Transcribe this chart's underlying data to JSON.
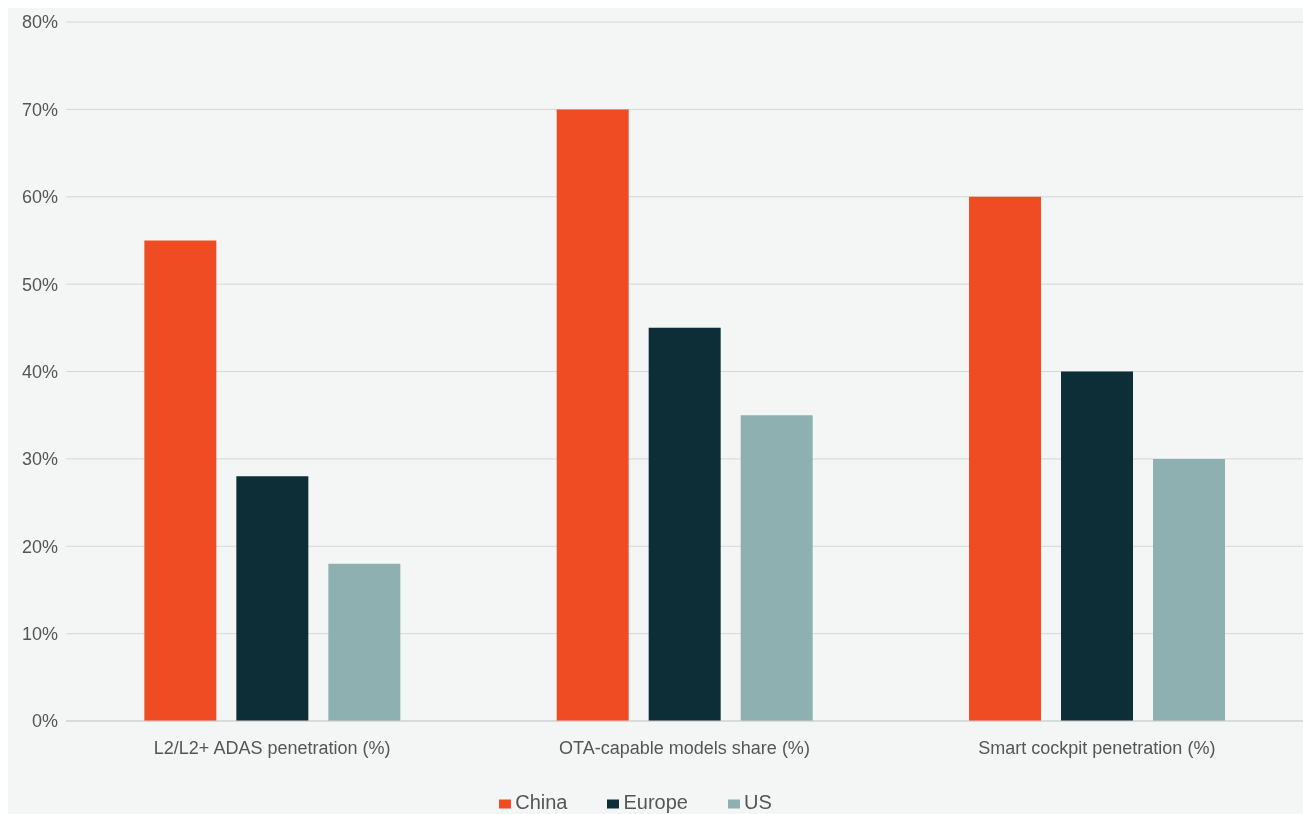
{
  "chart_data": {
    "type": "bar",
    "categories": [
      "L2/L2+ ADAS penetration (%)",
      "OTA-capable models share (%)",
      "Smart cockpit penetration (%)"
    ],
    "series": [
      {
        "name": "China",
        "color": "#f04c23",
        "values": [
          55,
          70,
          60
        ]
      },
      {
        "name": "Europe",
        "color": "#0d2e36",
        "values": [
          28,
          45,
          40
        ]
      },
      {
        "name": "US",
        "color": "#8fb0b1",
        "values": [
          18,
          35,
          30
        ]
      }
    ],
    "ylim": [
      0,
      80
    ],
    "yticks": [
      {
        "value": 0,
        "label": "0%"
      },
      {
        "value": 10,
        "label": "10%"
      },
      {
        "value": 20,
        "label": "20%"
      },
      {
        "value": 30,
        "label": "30%"
      },
      {
        "value": 40,
        "label": "40%"
      },
      {
        "value": 50,
        "label": "50%"
      },
      {
        "value": 60,
        "label": "60%"
      },
      {
        "value": 70,
        "label": "70%"
      },
      {
        "value": 80,
        "label": "80%"
      }
    ],
    "grid": "y",
    "legend": "bottom"
  }
}
